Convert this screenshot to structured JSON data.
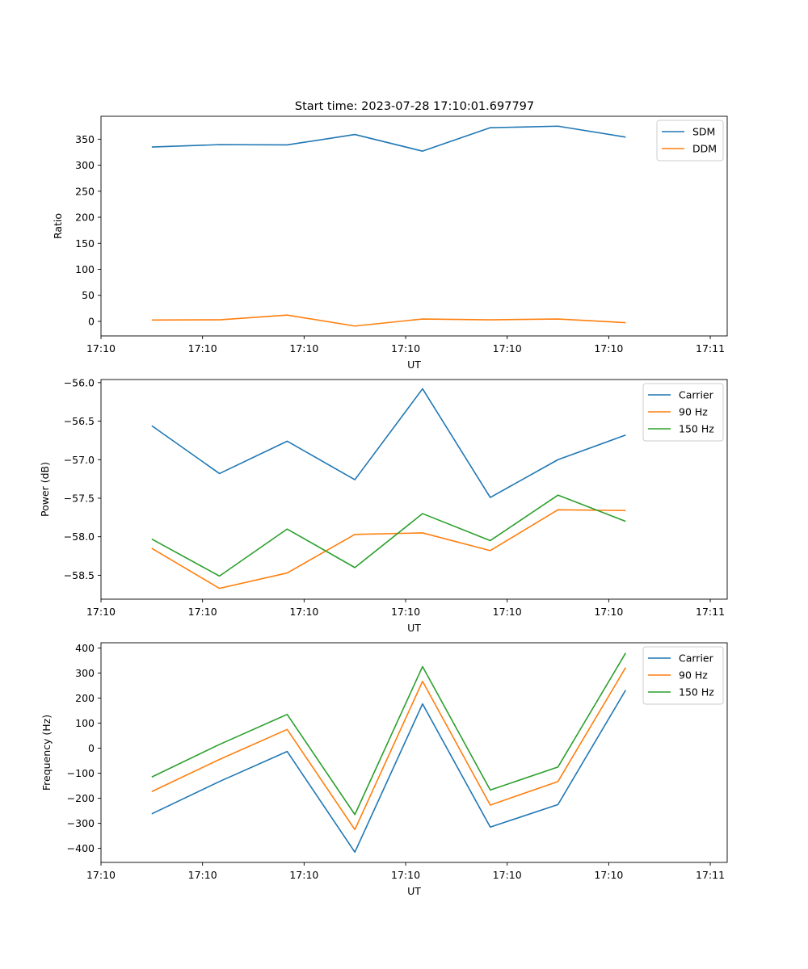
{
  "figure": {
    "title": "Start time: 2023-07-28 17:10:01.697797"
  },
  "colors": {
    "c0": "#1f77b4",
    "c1": "#ff7f0e",
    "c2": "#2ca02c",
    "axis": "#000000",
    "legend_border": "#cccccc"
  },
  "chart_data": [
    {
      "type": "line",
      "title": "Start time: 2023-07-28 17:10:01.697797",
      "xlabel": "UT",
      "ylabel": "Ratio",
      "x": [
        0,
        1,
        2,
        3,
        4,
        5,
        6,
        7
      ],
      "xlim": [
        -0.75,
        8.5
      ],
      "xticks": [
        -0.75,
        0.75,
        2.25,
        3.75,
        5.25,
        6.75,
        8.25
      ],
      "xticklabels": [
        "17:10",
        "17:10",
        "17:10",
        "17:10",
        "17:10",
        "17:10",
        "17:11"
      ],
      "ylim": [
        -28,
        394
      ],
      "yticks": [
        0,
        50,
        100,
        150,
        200,
        250,
        300,
        350
      ],
      "yticklabels": [
        "0",
        "50",
        "100",
        "150",
        "200",
        "250",
        "300",
        "350"
      ],
      "legend": "top-right",
      "series": [
        {
          "name": "SDM",
          "color": "c0",
          "values": [
            335,
            339.5,
            339,
            359,
            327,
            372,
            375,
            354
          ]
        },
        {
          "name": "DDM",
          "color": "c1",
          "values": [
            2.5,
            3,
            12,
            -9,
            4.5,
            3,
            4.5,
            -2.5
          ]
        }
      ]
    },
    {
      "type": "line",
      "xlabel": "UT",
      "ylabel": "Power (dB)",
      "x": [
        0,
        1,
        2,
        3,
        4,
        5,
        6,
        7
      ],
      "xlim": [
        -0.75,
        8.5
      ],
      "xticks": [
        -0.75,
        0.75,
        2.25,
        3.75,
        5.25,
        6.75,
        8.25
      ],
      "xticklabels": [
        "17:10",
        "17:10",
        "17:10",
        "17:10",
        "17:10",
        "17:10",
        "17:11"
      ],
      "ylim": [
        -58.81,
        -55.96
      ],
      "yticks": [
        -58.5,
        -58.0,
        -57.5,
        -57.0,
        -56.5,
        -56.0
      ],
      "yticklabels": [
        "−58.5",
        "−58.0",
        "−57.5",
        "−57.0",
        "−56.5",
        "−56.0"
      ],
      "legend": "top-right",
      "series": [
        {
          "name": "Carrier",
          "color": "c0",
          "values": [
            -56.56,
            -57.18,
            -56.76,
            -57.26,
            -56.08,
            -57.49,
            -57.0,
            -56.68
          ]
        },
        {
          "name": "90 Hz",
          "color": "c1",
          "values": [
            -58.15,
            -58.67,
            -58.47,
            -57.97,
            -57.95,
            -58.18,
            -57.65,
            -57.66
          ]
        },
        {
          "name": "150 Hz",
          "color": "c2",
          "values": [
            -58.03,
            -58.51,
            -57.9,
            -58.4,
            -57.7,
            -58.05,
            -57.46,
            -57.8
          ]
        }
      ]
    },
    {
      "type": "line",
      "xlabel": "UT",
      "ylabel": "Frequency (Hz)",
      "x": [
        0,
        1,
        2,
        3,
        4,
        5,
        6,
        7
      ],
      "xlim": [
        -0.75,
        8.5
      ],
      "xticks": [
        -0.75,
        0.75,
        2.25,
        3.75,
        5.25,
        6.75,
        8.25
      ],
      "xticklabels": [
        "17:10",
        "17:10",
        "17:10",
        "17:10",
        "17:10",
        "17:10",
        "17:11"
      ],
      "ylim": [
        -456,
        421
      ],
      "yticks": [
        -400,
        -300,
        -200,
        -100,
        0,
        100,
        200,
        300,
        400
      ],
      "yticklabels": [
        "−400",
        "−300",
        "−200",
        "−100",
        "0",
        "100",
        "200",
        "300",
        "400"
      ],
      "legend": "top-right",
      "series": [
        {
          "name": "Carrier",
          "color": "c0",
          "values": [
            -262,
            -133,
            -13,
            -415,
            177,
            -315,
            -225,
            232
          ]
        },
        {
          "name": "90 Hz",
          "color": "c1",
          "values": [
            -173,
            -45,
            75,
            -325,
            267,
            -227,
            -133,
            322
          ]
        },
        {
          "name": "150 Hz",
          "color": "c2",
          "values": [
            -115,
            15,
            135,
            -265,
            326,
            -167,
            -75,
            380
          ]
        }
      ]
    }
  ]
}
